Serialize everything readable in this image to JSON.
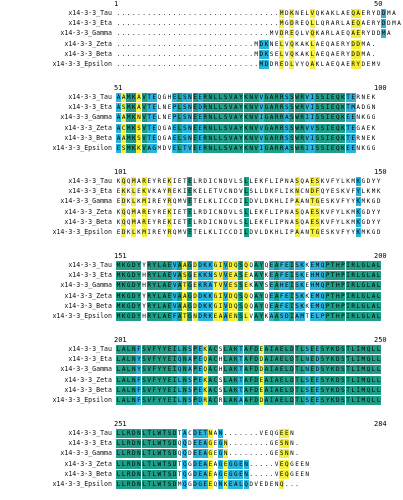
{
  "colors": {
    "identical": "#1e9e86",
    "conserved": "#2ab4dc",
    "similar": "#f4ee3c",
    "none": "#ffffff"
  },
  "labels": [
    "x14-3-3_Tau",
    "x14-3-3_Eta",
    "x14-3-3_Gamma",
    "x14-3-3_Zeta",
    "x14-3-3_Beta",
    "x14-3-3_Epsilon"
  ],
  "blocks": [
    {
      "start": "1",
      "end": "50",
      "rows": [
        "................................MDKNELVQKAKLAEQAERYDDMA",
        "................................MGDREQLLQRARLAEQAERYDDMA",
        "..............................MVDREQLVQKARLAEQAERYDDMA",
        "...........................MDKNELVQKAKLAEQAERYDDMA.",
        "...........................MDKSELVQKAKLAEQAERYDDMA.",
        "............................MDDREDLVYQAKLAEQAERYDEMV"
      ]
    },
    {
      "start": "51",
      "end": "100",
      "rows": [
        "AAMKAVTEQGHELSNEERNLLSVAYKNVVGARRSSWRVISSIEQKTERNEK",
        "ASMKAVTELNEPLSNEDRNLLSVAYKNVVGARRSSWRVISSIEQKTMADGN",
        "AAMKNVTELNEPLSNEERNLLSVAYKNVIGARRASWRIISSIEQKEENKGG",
        "ACMKSVTEQGAELSNEERNLLSVAYKNVVGARRSSWRVVSSIEQKTEGAEK",
        "AAMKSVTEQGAELSNEERNLLSVAYKNVVGARRSSWRVISSIEQKTERNEK",
        "ESMKKVAGMDVELTVEERNLLSVAYKNVIGARRASWRIISSIEQKEENKGG"
      ]
    },
    {
      "start": "101",
      "end": "150",
      "rows": [
        "KQQMAREYREKIETELRDICNDVLSLLEKFLIPNASQAESKVFYLKMKGDYY",
        "EKKLEKVKAYREKIEKELETVCNDVLSLLDKFLIKNCNDFQYESKVFYLKMK",
        "EDKLKMIREYRQMVETELKLICCDILDVLDKHLIPAANTGESKVFYYKMKGD",
        "KQQMAREYREKIETELRDICNDVLSLLEKFLIPNASQAESKVFYLKMKGDYY",
        "KQQMAREYREKIETELRDICNDVLSLLEKFLIPNASQAESKVFYLKMKGDYY",
        "EDKLKMIREYRQMVETELKLICCDILDVLDKHLIPAANTGESKVFYYKMKGD"
      ]
    },
    {
      "start": "151",
      "end": "200",
      "rows": [
        "MKGDYYRYLAEVAAGDDKKGIVDQSQQAYQEAFEISKKEMQPTHPIRLGLAL",
        "MKGDYHRYLAEVASGEKKNSVVEASEAAYKEAFEISKEHMQPTHPIRLGLAL",
        "MKGDYHRYLAEVATGEKRATVVESSEKAYSEAHEISKEHMQPTHPIRLGLAL",
        "MKGDYYRYLAEVAAGDDKKGIVDQSQQAYQEAFEISKKEMQPTHPIRLGLAL",
        "MKGDYYRYLAEVAAGDDKKGIVDQSQQAYQEAFEISKKEMQPTHPIRLGLAL",
        "MKGDYHRYLAEFATGNDRKEAAENSLVAYKAASDIAMTELPPTHPIRLGLAL"
      ]
    },
    {
      "start": "201",
      "end": "250",
      "rows": [
        "LALNFSVFYYEILNSPEKACSLAKTAFDEAIAELDTLSEESYKDSTLIMQLL",
        "LALNYSVFYYEIQNAPEQACHLAKTAFDDAIAELDTLNEDSYKDSTLIMQLL",
        "LALNYSVFYYEIQNAPEQACHLAKTAFDDAIAELDTLNEDSYKDSTLIMQLL",
        "LALNFSVFYYEILNSPEKACSLAKTAFDEAIAELDTLSEESYKDSTLIMQLL",
        "LALNFSVFYYEILNSPEKACSLAKTAFDEAIAELDTLSEESYKDSTLIMQLL",
        "LALNFSVFYYEILNSPDRACRLAKAAFDDAIAELDTLSEESYKDSTLIMQLL"
      ]
    },
    {
      "start": "251",
      "end": "284",
      "rows": [
        "LLRDNLTLWTSDTACDETNAN.......VEQGEEN",
        "LLRDNLTLWTSDQQDEEAGEGN........GESNN.",
        "LLRDNLTLWTSDQQDEEAGEGN........GESNN.",
        "LLRDNLTLWTSDTQGDEAEAGEGGEN.....VEQGEEN",
        "LLRDNLTLWTSDTQGDEAEAGEGGEN.....VEQGEEN",
        "LLRDNLTLWTSDMQGDGEEQNKEALQDVEDENQ..."
      ]
    }
  ]
}
